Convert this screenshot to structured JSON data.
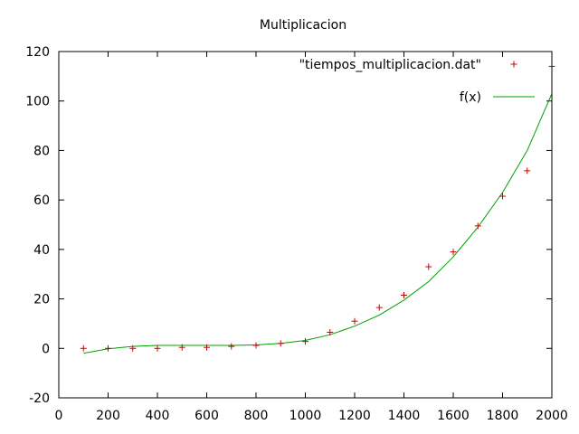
{
  "chart_data": {
    "type": "scatter",
    "title": "Multiplicacion",
    "xlabel": "",
    "ylabel": "",
    "xlim": [
      0,
      2000
    ],
    "ylim": [
      -20,
      120
    ],
    "x_ticks": [
      0,
      200,
      400,
      600,
      800,
      1000,
      1200,
      1400,
      1600,
      1800,
      2000
    ],
    "y_ticks": [
      -20,
      0,
      20,
      40,
      60,
      80,
      100,
      120
    ],
    "grid": false,
    "legend_position": "top-right",
    "series": [
      {
        "name": "\"tiempos_multiplicacion.dat\"",
        "kind": "points",
        "marker": "plus",
        "color": "#cc0000",
        "points": [
          [
            100,
            0.0
          ],
          [
            200,
            0.0
          ],
          [
            300,
            0.0
          ],
          [
            400,
            0.0
          ],
          [
            500,
            0.4
          ],
          [
            600,
            0.4
          ],
          [
            700,
            0.8
          ],
          [
            800,
            1.2
          ],
          [
            900,
            2.0
          ],
          [
            1000,
            2.8
          ],
          [
            1100,
            6.5
          ],
          [
            1200,
            11.0
          ],
          [
            1300,
            16.5
          ],
          [
            1400,
            21.5
          ],
          [
            1500,
            33.0
          ],
          [
            1600,
            39.0
          ],
          [
            1700,
            49.5
          ],
          [
            1800,
            61.5
          ],
          [
            1900,
            71.8
          ],
          [
            2000,
            114.0
          ]
        ]
      },
      {
        "name": "f(x)",
        "kind": "line",
        "color": "#00a000",
        "points": [
          [
            100,
            -2.0
          ],
          [
            200,
            -0.2
          ],
          [
            300,
            0.8
          ],
          [
            400,
            1.2
          ],
          [
            500,
            1.2
          ],
          [
            600,
            1.2
          ],
          [
            700,
            1.2
          ],
          [
            800,
            1.4
          ],
          [
            900,
            2.0
          ],
          [
            1000,
            3.2
          ],
          [
            1100,
            5.5
          ],
          [
            1200,
            9.0
          ],
          [
            1300,
            13.5
          ],
          [
            1400,
            19.5
          ],
          [
            1500,
            27.0
          ],
          [
            1600,
            37.0
          ],
          [
            1700,
            49.0
          ],
          [
            1800,
            63.0
          ],
          [
            1900,
            80.0
          ],
          [
            2000,
            103.0
          ]
        ]
      }
    ]
  }
}
